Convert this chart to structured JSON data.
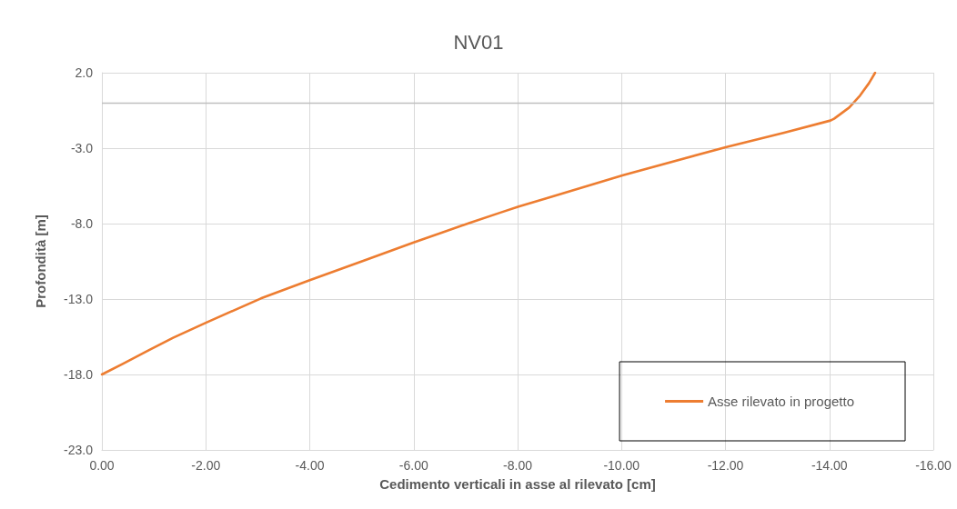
{
  "chart_data": {
    "type": "line",
    "title": "NV01",
    "xlabel": "Cedimento verticali in asse al rilevato [cm]",
    "ylabel": "Profondità [m]",
    "x": [
      0,
      -0.4,
      -0.9,
      -1.37,
      -2.0,
      -3.06,
      -4.0,
      -5.04,
      -6.0,
      -7.09,
      -7.67,
      -8.02,
      -8.55,
      -10.03,
      -12.02,
      -13.13,
      -14.02,
      -14.09,
      -14.38,
      -14.59,
      -14.76,
      -14.88
    ],
    "series": [
      {
        "name": "Asse rilevato in progetto",
        "color": "#ed7d31",
        "values": [
          -18.0,
          -17.3,
          -16.4,
          -15.57,
          -14.57,
          -12.96,
          -11.75,
          -10.45,
          -9.25,
          -7.94,
          -7.27,
          -6.87,
          -6.33,
          -4.79,
          -2.92,
          -1.98,
          -1.17,
          -1.05,
          -0.31,
          0.49,
          1.3,
          2.0
        ]
      }
    ],
    "xlim": [
      0,
      -16
    ],
    "xticks": [
      {
        "value": 0,
        "label": "0.00"
      },
      {
        "value": -2,
        "label": "-2.00"
      },
      {
        "value": -4,
        "label": "-4.00"
      },
      {
        "value": -6,
        "label": "-6.00"
      },
      {
        "value": -8,
        "label": "-8.00"
      },
      {
        "value": -10,
        "label": "-10.00"
      },
      {
        "value": -12,
        "label": "-12.00"
      },
      {
        "value": -14,
        "label": "-14.00"
      },
      {
        "value": -16,
        "label": "-16.00"
      }
    ],
    "ylim": [
      -23,
      2
    ],
    "yticks": [
      {
        "value": 2,
        "label": "2.0"
      },
      {
        "value": -3,
        "label": "-3.0"
      },
      {
        "value": -8,
        "label": "-8.0"
      },
      {
        "value": -13,
        "label": "-13.0"
      },
      {
        "value": -18,
        "label": "-18.0"
      },
      {
        "value": -23,
        "label": "-23.0"
      }
    ],
    "ref_lines": [
      {
        "axis": "y",
        "value": 0,
        "color": "#bfbfbf"
      }
    ],
    "grid": true,
    "legend": "bottom right",
    "marker": "none",
    "line_style": "solid"
  }
}
